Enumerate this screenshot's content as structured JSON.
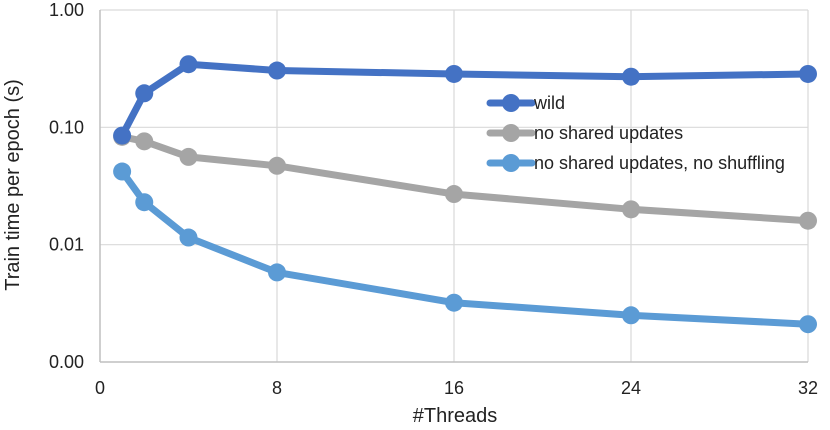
{
  "chart_data": {
    "type": "line",
    "xlabel": "#Threads",
    "ylabel": "Train time per epoch (s)",
    "xlim": [
      0,
      32
    ],
    "ylim": [
      0.001,
      1.0
    ],
    "yscale": "log",
    "x_ticks": [
      0,
      8,
      16,
      24,
      32
    ],
    "x_tick_labels": [
      "0",
      "8",
      "16",
      "24",
      "32"
    ],
    "y_ticks": [
      0.001,
      0.01,
      0.1,
      1.0
    ],
    "y_tick_labels": [
      "0.00",
      "0.01",
      "0.10",
      "1.00"
    ],
    "grid": true,
    "legend_position": "center-right",
    "series": [
      {
        "name": "wild",
        "color": "#4472C4",
        "x": [
          1,
          2,
          4,
          8,
          16,
          24,
          32
        ],
        "y": [
          0.085,
          0.195,
          0.345,
          0.305,
          0.285,
          0.27,
          0.285
        ]
      },
      {
        "name": "no shared updates",
        "color": "#A5A5A5",
        "x": [
          1,
          2,
          4,
          8,
          16,
          24,
          32
        ],
        "y": [
          0.083,
          0.076,
          0.056,
          0.047,
          0.027,
          0.02,
          0.016
        ]
      },
      {
        "name": "no shared updates, no shuffling",
        "color": "#5B9BD5",
        "x": [
          1,
          2,
          4,
          8,
          16,
          24,
          32
        ],
        "y": [
          0.042,
          0.023,
          0.0115,
          0.0058,
          0.0032,
          0.0025,
          0.0021
        ]
      }
    ]
  }
}
